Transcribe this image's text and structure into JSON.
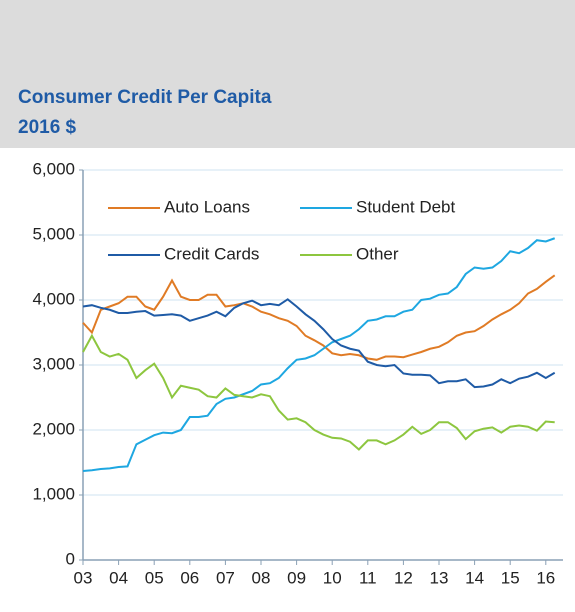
{
  "chart_data": {
    "type": "line",
    "title": "Consumer Credit Per Capita",
    "subtitle": "2016 $",
    "categories": [
      "03",
      null,
      null,
      null,
      "04",
      null,
      null,
      null,
      "05",
      null,
      null,
      null,
      "06",
      null,
      null,
      null,
      "07",
      null,
      null,
      null,
      "08",
      null,
      null,
      null,
      "09",
      null,
      null,
      null,
      "10",
      null,
      null,
      null,
      "11",
      null,
      null,
      null,
      "12",
      null,
      null,
      null,
      "13",
      null,
      null,
      null,
      "14",
      null,
      null,
      null,
      "15",
      null,
      null,
      null,
      "16",
      null
    ],
    "series": [
      {
        "name": "Auto Loans",
        "color": "#e07b25",
        "values": [
          3650,
          3500,
          3850,
          3900,
          3950,
          4050,
          4050,
          3900,
          3850,
          4050,
          4300,
          4050,
          4000,
          4000,
          4080,
          4080,
          3900,
          3920,
          3950,
          3900,
          3820,
          3780,
          3720,
          3680,
          3600,
          3450,
          3380,
          3300,
          3180,
          3150,
          3170,
          3150,
          3100,
          3080,
          3130,
          3130,
          3120,
          3160,
          3200,
          3250,
          3280,
          3350,
          3450,
          3500,
          3520,
          3600,
          3700,
          3780,
          3850,
          3950,
          4100,
          4170,
          4280,
          4380
        ]
      },
      {
        "name": "Student Debt",
        "color": "#1ea7e1",
        "values": [
          1370,
          1380,
          1400,
          1410,
          1430,
          1440,
          1780,
          1850,
          1920,
          1960,
          1950,
          2000,
          2200,
          2200,
          2220,
          2400,
          2480,
          2500,
          2550,
          2600,
          2700,
          2720,
          2800,
          2950,
          3080,
          3100,
          3150,
          3250,
          3350,
          3400,
          3450,
          3550,
          3680,
          3700,
          3750,
          3750,
          3820,
          3850,
          4000,
          4020,
          4080,
          4100,
          4200,
          4400,
          4500,
          4480,
          4500,
          4600,
          4750,
          4720,
          4800,
          4920,
          4900,
          4950
        ]
      },
      {
        "name": "Credit Cards",
        "color": "#1f5ba6",
        "values": [
          3900,
          3920,
          3880,
          3850,
          3800,
          3800,
          3820,
          3830,
          3760,
          3770,
          3780,
          3760,
          3680,
          3720,
          3760,
          3820,
          3750,
          3880,
          3950,
          3990,
          3920,
          3940,
          3920,
          4010,
          3900,
          3780,
          3680,
          3550,
          3400,
          3300,
          3250,
          3220,
          3050,
          3000,
          2980,
          3000,
          2870,
          2850,
          2850,
          2840,
          2720,
          2750,
          2750,
          2780,
          2660,
          2670,
          2700,
          2780,
          2720,
          2790,
          2820,
          2880,
          2800,
          2880
        ]
      },
      {
        "name": "Other",
        "color": "#8dc63f",
        "values": [
          3200,
          3450,
          3200,
          3130,
          3170,
          3080,
          2800,
          2920,
          3020,
          2800,
          2500,
          2680,
          2650,
          2620,
          2520,
          2500,
          2640,
          2540,
          2520,
          2500,
          2550,
          2520,
          2300,
          2160,
          2180,
          2120,
          2000,
          1930,
          1880,
          1870,
          1820,
          1700,
          1840,
          1840,
          1780,
          1840,
          1930,
          2050,
          1940,
          2000,
          2120,
          2120,
          2030,
          1860,
          1980,
          2020,
          2040,
          1960,
          2050,
          2070,
          2050,
          1990,
          2130,
          2120
        ]
      }
    ],
    "ylim": [
      0,
      6000
    ],
    "yticks": [
      0,
      {
        "value": 1000,
        "label": "1,000"
      },
      {
        "value": 2000,
        "label": "2,000"
      },
      {
        "value": 3000,
        "label": "3,000"
      },
      {
        "value": 4000,
        "label": "4,000"
      },
      {
        "value": 5000,
        "label": "5,000"
      },
      {
        "value": 6000,
        "label": "6,000"
      }
    ],
    "grid": true
  }
}
